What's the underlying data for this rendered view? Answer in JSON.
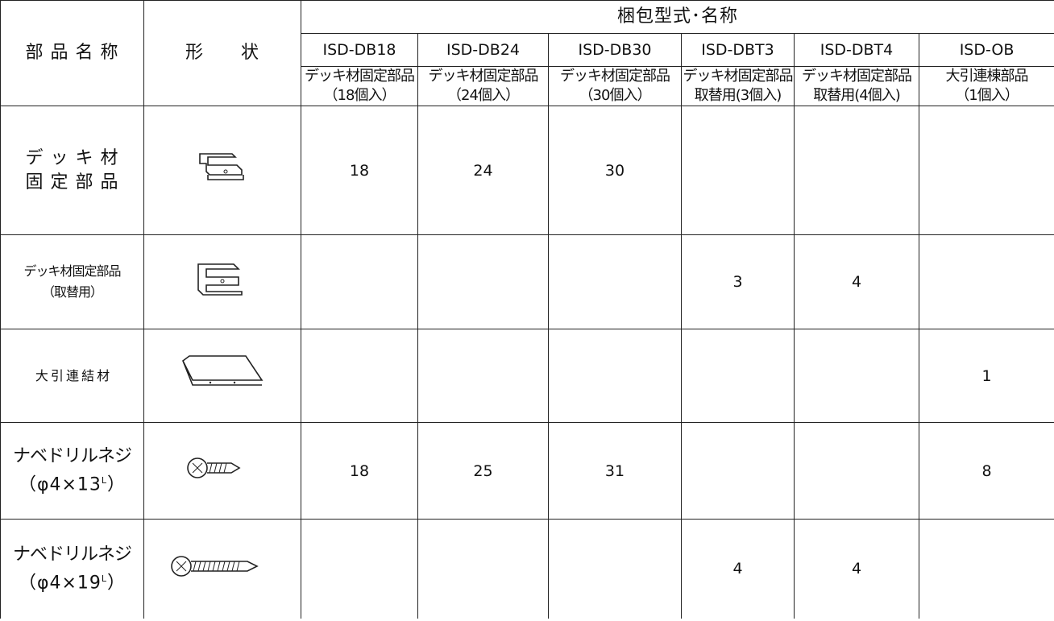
{
  "header": {
    "part_name": "部 品 名 称",
    "shape": "形　　状",
    "group": "梱包型式･名称",
    "columns": [
      {
        "code": "ISD-DB18",
        "desc": [
          "デッキ材固定部品",
          "（18個入）"
        ]
      },
      {
        "code": "ISD-DB24",
        "desc": [
          "デッキ材固定部品",
          "（24個入）"
        ]
      },
      {
        "code": "ISD-DB30",
        "desc": [
          "デッキ材固定部品",
          "（30個入）"
        ]
      },
      {
        "code": "ISD-DBT3",
        "desc": [
          "デッキ材固定部品",
          "取替用(3個入)"
        ]
      },
      {
        "code": "ISD-DBT4",
        "desc": [
          "デッキ材固定部品",
          "取替用(4個入)"
        ]
      },
      {
        "code": "ISD-OB",
        "desc": [
          "大引連棟部品",
          "（1個入）"
        ]
      }
    ]
  },
  "rows": [
    {
      "name": [
        "デ ッ キ 材",
        "固 定 部 品"
      ],
      "quantities": [
        18,
        24,
        30,
        null,
        null,
        null
      ]
    },
    {
      "name": [
        "デッキ材固定部品",
        "（取替用）"
      ],
      "quantities": [
        null,
        null,
        null,
        3,
        4,
        null
      ]
    },
    {
      "name": [
        "大 引 連 結 材"
      ],
      "quantities": [
        null,
        null,
        null,
        null,
        null,
        1
      ]
    },
    {
      "name": [
        "ナベドリルネジ"
      ],
      "spec": {
        "text": "（φ4×13",
        "sup": "L",
        "close": "）"
      },
      "quantities": [
        18,
        25,
        31,
        null,
        null,
        8
      ]
    },
    {
      "name": [
        "ナベドリルネジ"
      ],
      "spec": {
        "text": "（φ4×19",
        "sup": "L",
        "close": "）"
      },
      "quantities": [
        null,
        null,
        null,
        4,
        4,
        null
      ]
    }
  ]
}
